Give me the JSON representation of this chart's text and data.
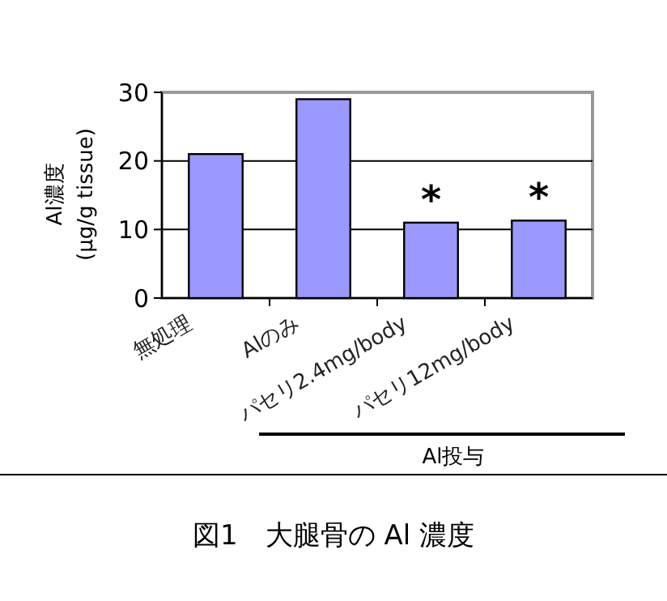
{
  "chart_data": {
    "type": "bar",
    "title": "図1　大腿骨の Al 濃度",
    "ylabel": "Al濃度\n(μg/g tissue)",
    "categories": [
      "無処理",
      "Alのみ",
      "パセリ2.4mg/body",
      "パセリ12mg/body"
    ],
    "values": [
      21,
      29,
      11,
      11.3
    ],
    "color": "#9999ff",
    "ylim": [
      0,
      30
    ],
    "yticks": [
      0,
      10,
      20,
      30
    ],
    "grid": "y",
    "annotations": [
      {
        "text": "*",
        "x": "パセリ2.4mg/body",
        "y": 11
      },
      {
        "text": "*",
        "x": "パセリ12mg/body",
        "y": 11.3
      },
      "Al投与"
    ]
  }
}
